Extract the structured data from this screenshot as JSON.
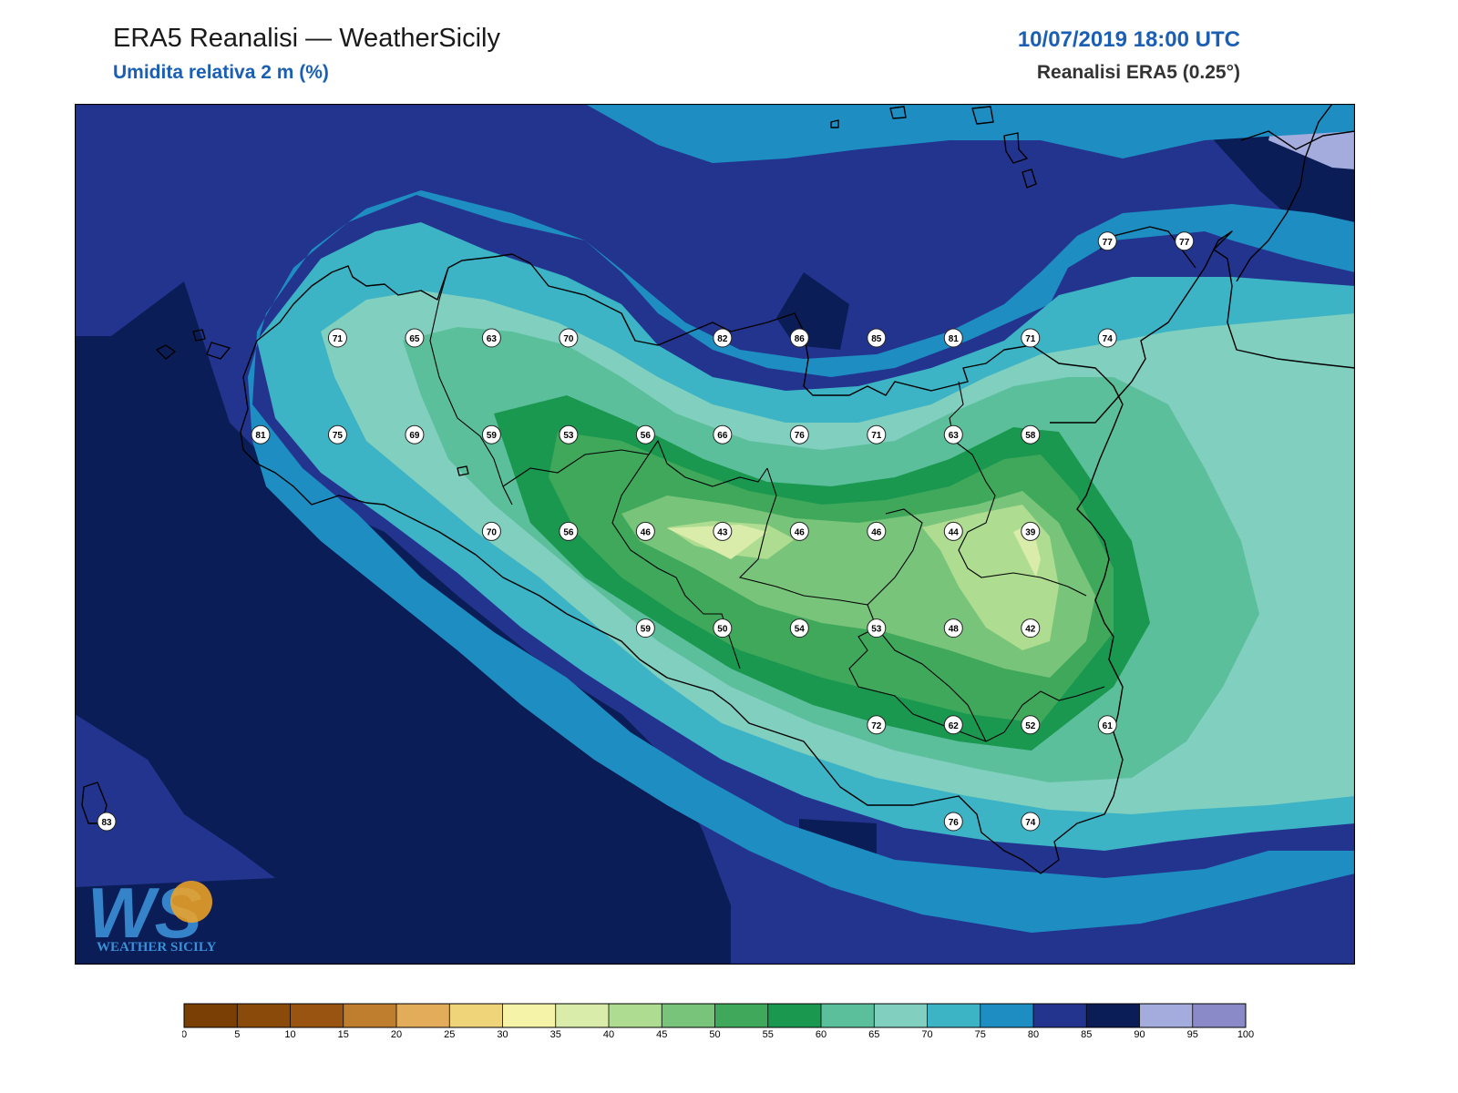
{
  "header": {
    "title": "ERA5 Reanalisi — WeatherSicily",
    "subtitle": "Umidita relativa 2 m (%)",
    "datetime": "10/07/2019 18:00 UTC",
    "source": "Reanalisi ERA5 (0.25°)"
  },
  "logo": {
    "mark": "WS",
    "wordmark": "WEATHER SICILY"
  },
  "legend": {
    "ticks": [
      "0",
      "5",
      "10",
      "15",
      "20",
      "25",
      "30",
      "35",
      "40",
      "45",
      "50",
      "55",
      "60",
      "65",
      "70",
      "75",
      "80",
      "85",
      "90",
      "95",
      "100"
    ],
    "colors": [
      "#7a3f05",
      "#8a4a0a",
      "#985410",
      "#bf7e2e",
      "#e2ac5a",
      "#f0d47a",
      "#f5f3a8",
      "#d9ecaa",
      "#aedc90",
      "#78c47a",
      "#3fa85a",
      "#1a9850",
      "#5cbf9b",
      "#80cfbf",
      "#3db3c6",
      "#1e8ec2",
      "#23348f",
      "#0b1d57",
      "#a3acdd",
      "#8a8ac8"
    ]
  },
  "stations": [
    {
      "value": "71",
      "x": 12.3,
      "y": 38.4
    },
    {
      "value": "65",
      "x": 12.6,
      "y": 38.4
    },
    {
      "value": "63",
      "x": 12.9,
      "y": 38.4
    },
    {
      "value": "70",
      "x": 13.2,
      "y": 38.4
    },
    {
      "value": "82",
      "x": 13.8,
      "y": 38.4
    },
    {
      "value": "86",
      "x": 14.1,
      "y": 38.4
    },
    {
      "value": "85",
      "x": 14.4,
      "y": 38.4
    },
    {
      "value": "81",
      "x": 14.7,
      "y": 38.4
    },
    {
      "value": "71",
      "x": 15.0,
      "y": 38.4
    },
    {
      "value": "74",
      "x": 15.3,
      "y": 38.4
    },
    {
      "value": "77",
      "x": 15.3,
      "y": 38.7
    },
    {
      "value": "77",
      "x": 15.6,
      "y": 38.7
    },
    {
      "value": "81",
      "x": 12.0,
      "y": 38.1
    },
    {
      "value": "75",
      "x": 12.3,
      "y": 38.1
    },
    {
      "value": "69",
      "x": 12.6,
      "y": 38.1
    },
    {
      "value": "59",
      "x": 12.9,
      "y": 38.1
    },
    {
      "value": "53",
      "x": 13.2,
      "y": 38.1
    },
    {
      "value": "56",
      "x": 13.5,
      "y": 38.1
    },
    {
      "value": "66",
      "x": 13.8,
      "y": 38.1
    },
    {
      "value": "76",
      "x": 14.1,
      "y": 38.1
    },
    {
      "value": "71",
      "x": 14.4,
      "y": 38.1
    },
    {
      "value": "63",
      "x": 14.7,
      "y": 38.1
    },
    {
      "value": "58",
      "x": 15.0,
      "y": 38.1
    },
    {
      "value": "70",
      "x": 12.9,
      "y": 37.8
    },
    {
      "value": "56",
      "x": 13.2,
      "y": 37.8
    },
    {
      "value": "46",
      "x": 13.5,
      "y": 37.8
    },
    {
      "value": "43",
      "x": 13.8,
      "y": 37.8
    },
    {
      "value": "46",
      "x": 14.1,
      "y": 37.8
    },
    {
      "value": "46",
      "x": 14.4,
      "y": 37.8
    },
    {
      "value": "44",
      "x": 14.7,
      "y": 37.8
    },
    {
      "value": "39",
      "x": 15.0,
      "y": 37.8
    },
    {
      "value": "59",
      "x": 13.5,
      "y": 37.5
    },
    {
      "value": "50",
      "x": 13.8,
      "y": 37.5
    },
    {
      "value": "54",
      "x": 14.1,
      "y": 37.5
    },
    {
      "value": "53",
      "x": 14.4,
      "y": 37.5
    },
    {
      "value": "48",
      "x": 14.7,
      "y": 37.5
    },
    {
      "value": "42",
      "x": 15.0,
      "y": 37.5
    },
    {
      "value": "72",
      "x": 14.4,
      "y": 37.2
    },
    {
      "value": "62",
      "x": 14.7,
      "y": 37.2
    },
    {
      "value": "52",
      "x": 15.0,
      "y": 37.2
    },
    {
      "value": "61",
      "x": 15.3,
      "y": 37.2
    },
    {
      "value": "76",
      "x": 14.7,
      "y": 36.9
    },
    {
      "value": "74",
      "x": 15.0,
      "y": 36.9
    },
    {
      "value": "83",
      "x": 11.4,
      "y": 36.9
    }
  ]
}
